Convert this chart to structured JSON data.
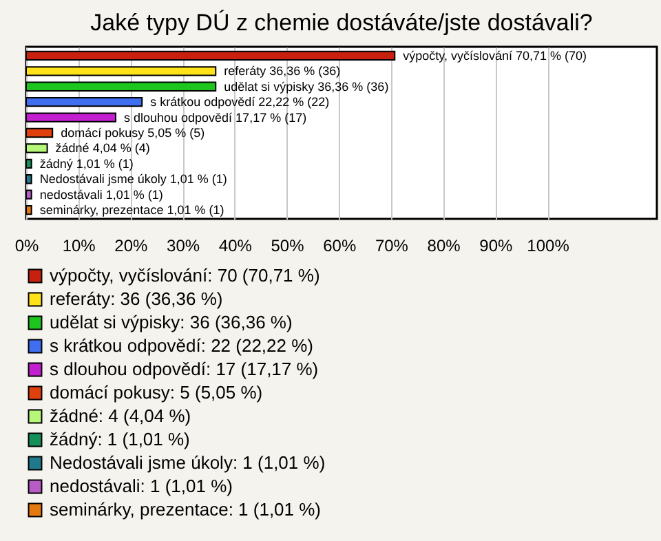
{
  "chart_data": {
    "type": "bar",
    "orientation": "horizontal",
    "title": "Jaké typy DÚ z chemie dostáváte/jste dostávali?",
    "categories": [
      null,
      null,
      null,
      null,
      null,
      null,
      null,
      null,
      null,
      null,
      null
    ],
    "xlim": [
      0,
      121
    ],
    "xticks": [
      {
        "value": 0,
        "label": "0%"
      },
      {
        "value": 10,
        "label": "10%"
      },
      {
        "value": 20,
        "label": "20%"
      },
      {
        "value": 30,
        "label": "30%"
      },
      {
        "value": 40,
        "label": "40%"
      },
      {
        "value": 50,
        "label": "50%"
      },
      {
        "value": 60,
        "label": "60%"
      },
      {
        "value": 70,
        "label": "70%"
      },
      {
        "value": 80,
        "label": "80%"
      },
      {
        "value": 90,
        "label": "90%"
      },
      {
        "value": 100,
        "label": "100%"
      }
    ],
    "grid": "x",
    "legend": "bottom",
    "series": [
      {
        "name": "výpočty, vyčíslování: 70 (70,71 %)",
        "color": "#c8200e",
        "values": [
          70.71,
          null,
          null,
          null,
          null,
          null,
          null,
          null,
          null,
          null,
          null
        ],
        "value_labels": [
          "výpočty, vyčíslování 70,71 % (70)",
          null,
          null,
          null,
          null,
          null,
          null,
          null,
          null,
          null,
          null
        ]
      },
      {
        "name": "referáty: 36 (36,36 %)",
        "color": "#ffe21a",
        "values": [
          null,
          36.36,
          null,
          null,
          null,
          null,
          null,
          null,
          null,
          null,
          null
        ],
        "value_labels": [
          null,
          "referáty 36,36 % (36)",
          null,
          null,
          null,
          null,
          null,
          null,
          null,
          null,
          null
        ]
      },
      {
        "name": "udělat si výpisky: 36 (36,36 %)",
        "color": "#1ec51e",
        "values": [
          null,
          null,
          36.36,
          null,
          null,
          null,
          null,
          null,
          null,
          null,
          null
        ],
        "value_labels": [
          null,
          null,
          "udělat si výpisky 36,36 % (36)",
          null,
          null,
          null,
          null,
          null,
          null,
          null,
          null
        ]
      },
      {
        "name": "s krátkou odpovědí: 22 (22,22 %)",
        "color": "#3f6ef0",
        "values": [
          null,
          null,
          null,
          22.22,
          null,
          null,
          null,
          null,
          null,
          null,
          null
        ],
        "value_labels": [
          null,
          null,
          null,
          "s krátkou odpovědí 22,22 % (22)",
          null,
          null,
          null,
          null,
          null,
          null,
          null
        ]
      },
      {
        "name": "s dlouhou odpovědí: 17 (17,17 %)",
        "color": "#c41ed1",
        "values": [
          null,
          null,
          null,
          null,
          17.17,
          null,
          null,
          null,
          null,
          null,
          null
        ],
        "value_labels": [
          null,
          null,
          null,
          null,
          "s dlouhou odpovědí 17,17 % (17)",
          null,
          null,
          null,
          null,
          null,
          null
        ]
      },
      {
        "name": "domácí pokusy: 5 (5,05 %)",
        "color": "#e0400e",
        "values": [
          null,
          null,
          null,
          null,
          null,
          5.05,
          null,
          null,
          null,
          null,
          null
        ],
        "value_labels": [
          null,
          null,
          null,
          null,
          null,
          "domácí pokusy 5,05 % (5)",
          null,
          null,
          null,
          null,
          null
        ]
      },
      {
        "name": "žádné: 4 (4,04 %)",
        "color": "#b6f77a",
        "values": [
          null,
          null,
          null,
          null,
          null,
          null,
          4.04,
          null,
          null,
          null,
          null
        ],
        "value_labels": [
          null,
          null,
          null,
          null,
          null,
          null,
          "žádné 4,04 % (4)",
          null,
          null,
          null,
          null
        ]
      },
      {
        "name": "žádný: 1 (1,01 %)",
        "color": "#159058",
        "values": [
          null,
          null,
          null,
          null,
          null,
          null,
          null,
          1.01,
          null,
          null,
          null
        ],
        "value_labels": [
          null,
          null,
          null,
          null,
          null,
          null,
          null,
          "žádný 1,01 % (1)",
          null,
          null,
          null
        ]
      },
      {
        "name": "Nedostávali jsme úkoly: 1 (1,01 %)",
        "color": "#207a8c",
        "values": [
          null,
          null,
          null,
          null,
          null,
          null,
          null,
          null,
          1.01,
          null,
          null
        ],
        "value_labels": [
          null,
          null,
          null,
          null,
          null,
          null,
          null,
          null,
          "Nedostávali jsme úkoly 1,01 % (1)",
          null,
          null
        ]
      },
      {
        "name": "nedostávali: 1 (1,01 %)",
        "color": "#b65cc4",
        "values": [
          null,
          null,
          null,
          null,
          null,
          null,
          null,
          null,
          null,
          1.01,
          null
        ],
        "value_labels": [
          null,
          null,
          null,
          null,
          null,
          null,
          null,
          null,
          null,
          "nedostávali 1,01 % (1)",
          null
        ]
      },
      {
        "name": "seminárky, prezentace: 1 (1,01 %)",
        "color": "#e5780e",
        "values": [
          null,
          null,
          null,
          null,
          null,
          null,
          null,
          null,
          null,
          null,
          1.01
        ],
        "value_labels": [
          null,
          null,
          null,
          null,
          null,
          null,
          null,
          null,
          null,
          null,
          "seminárky, prezentace 1,01 % (1)"
        ]
      }
    ]
  }
}
